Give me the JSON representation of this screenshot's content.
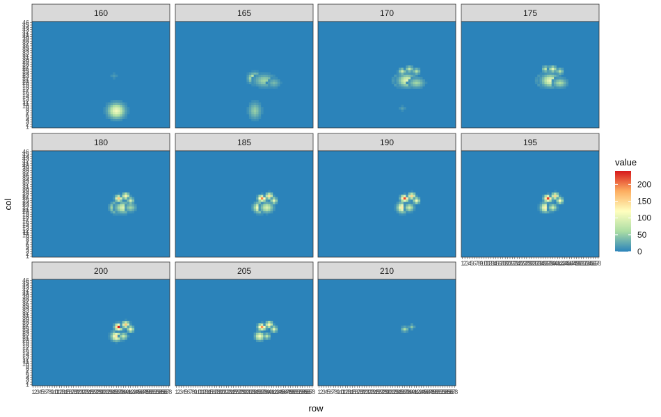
{
  "chart_data": {
    "type": "heatmap",
    "xlabel": "row",
    "ylabel": "col",
    "facet_labels": [
      "160",
      "165",
      "170",
      "175",
      "180",
      "185",
      "190",
      "195",
      "200",
      "205",
      "210"
    ],
    "fill_range": [
      0,
      240
    ],
    "background_value": 0,
    "colorscale": [
      "#2b83ba",
      "#abdda4",
      "#ffffbf",
      "#fdae61",
      "#d7191c"
    ],
    "legend": {
      "title": "value",
      "ticks": [
        0,
        50,
        100,
        150,
        200
      ],
      "tick_labels": [
        "0",
        "50",
        "100",
        "150",
        "200"
      ],
      "placement": "right"
    },
    "x_tick_labels": [
      "1",
      "2",
      "3",
      "4",
      "5",
      "6",
      "7",
      "8",
      "9",
      "10",
      "11",
      "12",
      "13",
      "14",
      "15",
      "16",
      "17",
      "18",
      "19",
      "20",
      "21",
      "22",
      "23",
      "24",
      "25",
      "26",
      "27",
      "28",
      "29",
      "30",
      "31",
      "32",
      "33",
      "34",
      "35",
      "36",
      "37",
      "38",
      "39",
      "40",
      "41",
      "42",
      "43",
      "44",
      "45",
      "46",
      "47",
      "48",
      "49",
      "50",
      "51",
      "52",
      "53",
      "54",
      "55",
      "56",
      "57",
      "58"
    ],
    "y_tick_labels": [
      "1",
      "2",
      "3",
      "4",
      "5",
      "6",
      "7",
      "8",
      "9",
      "10",
      "11",
      "12",
      "13",
      "14",
      "15",
      "16",
      "17",
      "18",
      "19",
      "20",
      "21",
      "22",
      "23",
      "24",
      "25",
      "26",
      "27",
      "28",
      "29",
      "30",
      "31",
      "32",
      "33",
      "34",
      "35",
      "36",
      "37",
      "38",
      "39",
      "40",
      "41",
      "42",
      "43",
      "44",
      "45",
      "46"
    ],
    "facets": [
      {
        "label": "160",
        "blobs": [
          {
            "x": 36,
            "y": 8,
            "v": 110,
            "sx": 2.2,
            "sy": 2.0
          },
          {
            "x": 35,
            "y": 23,
            "v": 15,
            "sx": 1.0,
            "sy": 0.8
          }
        ]
      },
      {
        "label": "165",
        "blobs": [
          {
            "x": 34,
            "y": 8,
            "v": 50,
            "sx": 1.6,
            "sy": 2.2
          },
          {
            "x": 34,
            "y": 22,
            "v": 115,
            "sx": 1.6,
            "sy": 1.3
          },
          {
            "x": 38,
            "y": 21,
            "v": 55,
            "sx": 2.6,
            "sy": 1.6
          },
          {
            "x": 42,
            "y": 20,
            "v": 35,
            "sx": 1.6,
            "sy": 1.2
          }
        ]
      },
      {
        "label": "170",
        "blobs": [
          {
            "x": 35,
            "y": 21,
            "v": 210,
            "sx": 1.3,
            "sy": 1.2
          },
          {
            "x": 38,
            "y": 21,
            "v": 100,
            "sx": 2.2,
            "sy": 1.6
          },
          {
            "x": 42,
            "y": 20,
            "v": 55,
            "sx": 2.0,
            "sy": 1.3
          },
          {
            "x": 36,
            "y": 25,
            "v": 80,
            "sx": 0.9,
            "sy": 0.8
          },
          {
            "x": 39,
            "y": 26,
            "v": 75,
            "sx": 0.9,
            "sy": 0.8
          },
          {
            "x": 42,
            "y": 25,
            "v": 65,
            "sx": 0.9,
            "sy": 0.8
          },
          {
            "x": 36,
            "y": 9,
            "v": 20,
            "sx": 0.8,
            "sy": 0.7
          }
        ]
      },
      {
        "label": "175",
        "blobs": [
          {
            "x": 35,
            "y": 21,
            "v": 185,
            "sx": 1.3,
            "sy": 1.2
          },
          {
            "x": 38,
            "y": 21,
            "v": 105,
            "sx": 2.2,
            "sy": 1.6
          },
          {
            "x": 42,
            "y": 20,
            "v": 60,
            "sx": 1.8,
            "sy": 1.2
          },
          {
            "x": 36,
            "y": 26,
            "v": 70,
            "sx": 0.9,
            "sy": 0.8
          },
          {
            "x": 39,
            "y": 26,
            "v": 95,
            "sx": 0.9,
            "sy": 0.8
          },
          {
            "x": 42,
            "y": 25,
            "v": 65,
            "sx": 0.9,
            "sy": 0.8
          }
        ]
      },
      {
        "label": "180",
        "blobs": [
          {
            "x": 36,
            "y": 22,
            "v": 130,
            "sx": 1.5,
            "sy": 1.3
          },
          {
            "x": 39,
            "y": 22,
            "v": 95,
            "sx": 2.0,
            "sy": 1.4
          },
          {
            "x": 42,
            "y": 22,
            "v": 55,
            "sx": 1.4,
            "sy": 1.1
          },
          {
            "x": 37,
            "y": 26,
            "v": 160,
            "sx": 0.9,
            "sy": 0.8
          },
          {
            "x": 40,
            "y": 27,
            "v": 130,
            "sx": 0.9,
            "sy": 0.8
          },
          {
            "x": 42,
            "y": 25,
            "v": 90,
            "sx": 0.8,
            "sy": 0.8
          }
        ]
      },
      {
        "label": "185",
        "blobs": [
          {
            "x": 36,
            "y": 22,
            "v": 135,
            "sx": 1.5,
            "sy": 1.3
          },
          {
            "x": 39,
            "y": 22,
            "v": 90,
            "sx": 1.6,
            "sy": 1.3
          },
          {
            "x": 37,
            "y": 26,
            "v": 195,
            "sx": 1.0,
            "sy": 0.8
          },
          {
            "x": 40,
            "y": 27,
            "v": 140,
            "sx": 0.9,
            "sy": 0.8
          },
          {
            "x": 42,
            "y": 25,
            "v": 100,
            "sx": 0.8,
            "sy": 0.8
          }
        ]
      },
      {
        "label": "190",
        "blobs": [
          {
            "x": 36,
            "y": 22,
            "v": 135,
            "sx": 1.3,
            "sy": 1.3
          },
          {
            "x": 39,
            "y": 22,
            "v": 85,
            "sx": 1.1,
            "sy": 1.0
          },
          {
            "x": 37,
            "y": 26,
            "v": 220,
            "sx": 1.0,
            "sy": 0.8
          },
          {
            "x": 40,
            "y": 27,
            "v": 150,
            "sx": 0.9,
            "sy": 0.8
          },
          {
            "x": 42,
            "y": 25,
            "v": 110,
            "sx": 0.8,
            "sy": 0.8
          }
        ]
      },
      {
        "label": "195",
        "blobs": [
          {
            "x": 36,
            "y": 22,
            "v": 130,
            "sx": 1.3,
            "sy": 1.2
          },
          {
            "x": 39,
            "y": 22,
            "v": 85,
            "sx": 1.0,
            "sy": 0.9
          },
          {
            "x": 37,
            "y": 26,
            "v": 225,
            "sx": 1.0,
            "sy": 0.8
          },
          {
            "x": 40,
            "y": 27,
            "v": 150,
            "sx": 0.9,
            "sy": 0.8
          },
          {
            "x": 42,
            "y": 25,
            "v": 115,
            "sx": 0.8,
            "sy": 0.8
          }
        ]
      },
      {
        "label": "200",
        "blobs": [
          {
            "x": 36,
            "y": 22,
            "v": 140,
            "sx": 1.3,
            "sy": 1.2
          },
          {
            "x": 39,
            "y": 22,
            "v": 80,
            "sx": 1.0,
            "sy": 0.9
          },
          {
            "x": 37,
            "y": 26,
            "v": 240,
            "sx": 1.0,
            "sy": 0.8
          },
          {
            "x": 40,
            "y": 27,
            "v": 160,
            "sx": 0.9,
            "sy": 0.8
          },
          {
            "x": 42,
            "y": 25,
            "v": 110,
            "sx": 0.8,
            "sy": 0.8
          }
        ]
      },
      {
        "label": "205",
        "blobs": [
          {
            "x": 36,
            "y": 22,
            "v": 110,
            "sx": 1.2,
            "sy": 1.1
          },
          {
            "x": 39,
            "y": 22,
            "v": 70,
            "sx": 0.9,
            "sy": 0.8
          },
          {
            "x": 37,
            "y": 26,
            "v": 190,
            "sx": 1.0,
            "sy": 0.8
          },
          {
            "x": 40,
            "y": 27,
            "v": 130,
            "sx": 0.9,
            "sy": 0.8
          },
          {
            "x": 42,
            "y": 25,
            "v": 95,
            "sx": 0.8,
            "sy": 0.8
          }
        ]
      },
      {
        "label": "210",
        "blobs": [
          {
            "x": 37,
            "y": 25,
            "v": 60,
            "sx": 0.9,
            "sy": 0.7
          },
          {
            "x": 40,
            "y": 26,
            "v": 45,
            "sx": 0.7,
            "sy": 0.7
          }
        ]
      }
    ]
  }
}
